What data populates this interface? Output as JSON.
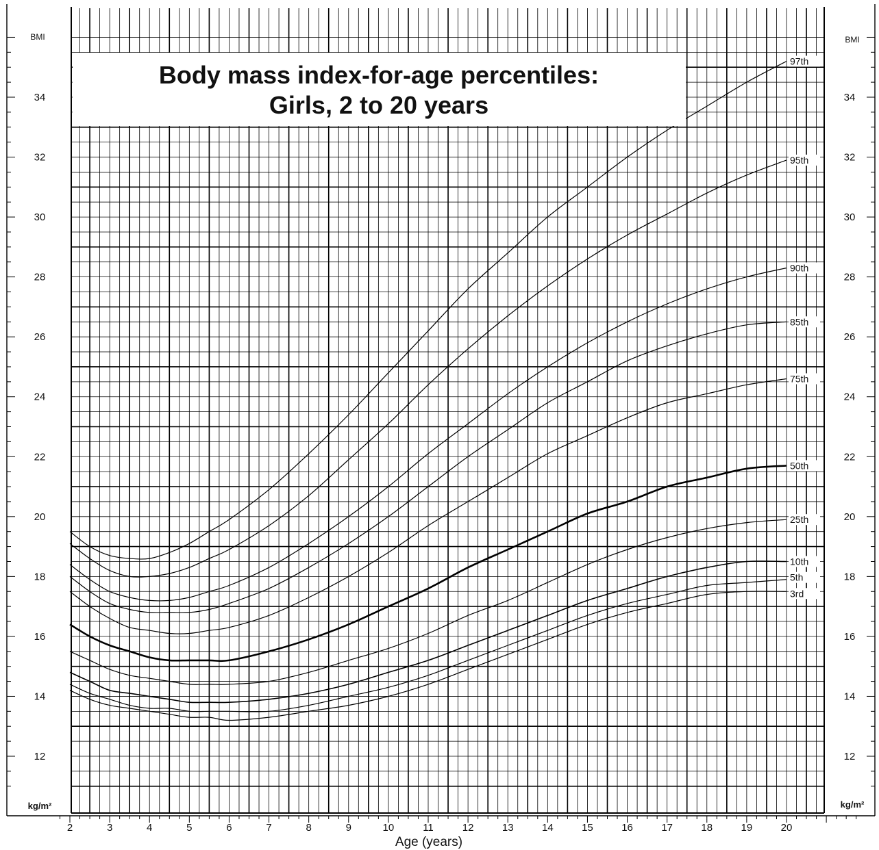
{
  "chart_data": {
    "type": "line",
    "title": "Body mass index-for-age percentiles:",
    "subtitle": "Girls, 2 to 20 years",
    "xlabel": "Age (years)",
    "ylabel_top": "BMI",
    "ylabel_bottom": "kg/m²",
    "xlim": [
      2,
      20
    ],
    "ylim": [
      11,
      36
    ],
    "grid": true,
    "x_ticks": [
      2,
      3,
      4,
      5,
      6,
      7,
      8,
      9,
      10,
      11,
      12,
      13,
      14,
      15,
      16,
      17,
      18,
      19,
      20
    ],
    "y_ticks": [
      12,
      14,
      16,
      18,
      20,
      22,
      24,
      26,
      28,
      30,
      32,
      34
    ],
    "series": [
      {
        "name": "97th",
        "width": 1.2,
        "points": [
          [
            2,
            19.5
          ],
          [
            2.5,
            19.0
          ],
          [
            3,
            18.7
          ],
          [
            3.5,
            18.6
          ],
          [
            4,
            18.6
          ],
          [
            4.5,
            18.8
          ],
          [
            5,
            19.1
          ],
          [
            5.5,
            19.5
          ],
          [
            6,
            19.9
          ],
          [
            7,
            20.9
          ],
          [
            8,
            22.1
          ],
          [
            9,
            23.4
          ],
          [
            10,
            24.8
          ],
          [
            11,
            26.2
          ],
          [
            12,
            27.6
          ],
          [
            13,
            28.8
          ],
          [
            14,
            30.0
          ],
          [
            15,
            31.0
          ],
          [
            16,
            32.0
          ],
          [
            17,
            32.9
          ],
          [
            18,
            33.7
          ],
          [
            19,
            34.5
          ],
          [
            20,
            35.2
          ]
        ]
      },
      {
        "name": "95th",
        "width": 1.2,
        "points": [
          [
            2,
            19.1
          ],
          [
            2.5,
            18.6
          ],
          [
            3,
            18.2
          ],
          [
            3.5,
            18.0
          ],
          [
            4,
            18.0
          ],
          [
            4.5,
            18.1
          ],
          [
            5,
            18.3
          ],
          [
            5.5,
            18.6
          ],
          [
            6,
            18.9
          ],
          [
            7,
            19.7
          ],
          [
            8,
            20.7
          ],
          [
            9,
            21.9
          ],
          [
            10,
            23.1
          ],
          [
            11,
            24.4
          ],
          [
            12,
            25.6
          ],
          [
            13,
            26.7
          ],
          [
            14,
            27.7
          ],
          [
            15,
            28.6
          ],
          [
            16,
            29.4
          ],
          [
            17,
            30.1
          ],
          [
            18,
            30.8
          ],
          [
            19,
            31.4
          ],
          [
            20,
            31.9
          ]
        ]
      },
      {
        "name": "90th",
        "width": 1.2,
        "points": [
          [
            2,
            18.4
          ],
          [
            2.5,
            17.9
          ],
          [
            3,
            17.5
          ],
          [
            3.5,
            17.3
          ],
          [
            4,
            17.2
          ],
          [
            4.5,
            17.2
          ],
          [
            5,
            17.3
          ],
          [
            5.5,
            17.5
          ],
          [
            6,
            17.7
          ],
          [
            7,
            18.3
          ],
          [
            8,
            19.1
          ],
          [
            9,
            20.0
          ],
          [
            10,
            21.0
          ],
          [
            11,
            22.1
          ],
          [
            12,
            23.1
          ],
          [
            13,
            24.1
          ],
          [
            14,
            25.0
          ],
          [
            15,
            25.8
          ],
          [
            16,
            26.5
          ],
          [
            17,
            27.1
          ],
          [
            18,
            27.6
          ],
          [
            19,
            28.0
          ],
          [
            20,
            28.3
          ]
        ]
      },
      {
        "name": "85th",
        "width": 1.2,
        "points": [
          [
            2,
            18.0
          ],
          [
            2.5,
            17.5
          ],
          [
            3,
            17.1
          ],
          [
            3.5,
            16.9
          ],
          [
            4,
            16.8
          ],
          [
            4.5,
            16.8
          ],
          [
            5,
            16.8
          ],
          [
            5.5,
            16.9
          ],
          [
            6,
            17.1
          ],
          [
            7,
            17.6
          ],
          [
            8,
            18.3
          ],
          [
            9,
            19.1
          ],
          [
            10,
            20.0
          ],
          [
            11,
            21.0
          ],
          [
            12,
            22.0
          ],
          [
            13,
            22.9
          ],
          [
            14,
            23.8
          ],
          [
            15,
            24.5
          ],
          [
            16,
            25.2
          ],
          [
            17,
            25.7
          ],
          [
            18,
            26.1
          ],
          [
            19,
            26.4
          ],
          [
            20,
            26.5
          ]
        ]
      },
      {
        "name": "75th",
        "width": 1.2,
        "points": [
          [
            2,
            17.5
          ],
          [
            2.5,
            17.0
          ],
          [
            3,
            16.6
          ],
          [
            3.5,
            16.3
          ],
          [
            4,
            16.2
          ],
          [
            4.5,
            16.1
          ],
          [
            5,
            16.1
          ],
          [
            5.5,
            16.2
          ],
          [
            6,
            16.3
          ],
          [
            7,
            16.7
          ],
          [
            8,
            17.3
          ],
          [
            9,
            18.0
          ],
          [
            10,
            18.8
          ],
          [
            11,
            19.7
          ],
          [
            12,
            20.5
          ],
          [
            13,
            21.3
          ],
          [
            14,
            22.1
          ],
          [
            15,
            22.7
          ],
          [
            16,
            23.3
          ],
          [
            17,
            23.8
          ],
          [
            18,
            24.1
          ],
          [
            19,
            24.4
          ],
          [
            20,
            24.6
          ]
        ]
      },
      {
        "name": "50th",
        "width": 2.6,
        "points": [
          [
            2,
            16.4
          ],
          [
            2.5,
            16.0
          ],
          [
            3,
            15.7
          ],
          [
            3.5,
            15.5
          ],
          [
            4,
            15.3
          ],
          [
            4.5,
            15.2
          ],
          [
            5,
            15.2
          ],
          [
            5.5,
            15.2
          ],
          [
            6,
            15.2
          ],
          [
            7,
            15.5
          ],
          [
            8,
            15.9
          ],
          [
            9,
            16.4
          ],
          [
            10,
            17.0
          ],
          [
            11,
            17.6
          ],
          [
            12,
            18.3
          ],
          [
            13,
            18.9
          ],
          [
            14,
            19.5
          ],
          [
            15,
            20.1
          ],
          [
            16,
            20.5
          ],
          [
            17,
            21.0
          ],
          [
            18,
            21.3
          ],
          [
            19,
            21.6
          ],
          [
            20,
            21.7
          ]
        ]
      },
      {
        "name": "25th",
        "width": 1.2,
        "points": [
          [
            2,
            15.5
          ],
          [
            2.5,
            15.2
          ],
          [
            3,
            14.9
          ],
          [
            3.5,
            14.7
          ],
          [
            4,
            14.6
          ],
          [
            4.5,
            14.5
          ],
          [
            5,
            14.4
          ],
          [
            5.5,
            14.4
          ],
          [
            6,
            14.4
          ],
          [
            7,
            14.5
          ],
          [
            8,
            14.8
          ],
          [
            9,
            15.2
          ],
          [
            10,
            15.6
          ],
          [
            11,
            16.1
          ],
          [
            12,
            16.7
          ],
          [
            13,
            17.2
          ],
          [
            14,
            17.8
          ],
          [
            15,
            18.4
          ],
          [
            16,
            18.9
          ],
          [
            17,
            19.3
          ],
          [
            18,
            19.6
          ],
          [
            19,
            19.8
          ],
          [
            20,
            19.9
          ]
        ]
      },
      {
        "name": "10th",
        "width": 1.6,
        "points": [
          [
            2,
            14.8
          ],
          [
            2.5,
            14.5
          ],
          [
            3,
            14.2
          ],
          [
            3.5,
            14.1
          ],
          [
            4,
            14.0
          ],
          [
            4.5,
            13.9
          ],
          [
            5,
            13.8
          ],
          [
            5.5,
            13.8
          ],
          [
            6,
            13.8
          ],
          [
            7,
            13.9
          ],
          [
            8,
            14.1
          ],
          [
            9,
            14.4
          ],
          [
            10,
            14.8
          ],
          [
            11,
            15.2
          ],
          [
            12,
            15.7
          ],
          [
            13,
            16.2
          ],
          [
            14,
            16.7
          ],
          [
            15,
            17.2
          ],
          [
            16,
            17.6
          ],
          [
            17,
            18.0
          ],
          [
            18,
            18.3
          ],
          [
            19,
            18.5
          ],
          [
            20,
            18.5
          ]
        ]
      },
      {
        "name": "5th",
        "width": 1.2,
        "points": [
          [
            2,
            14.4
          ],
          [
            2.5,
            14.1
          ],
          [
            3,
            13.9
          ],
          [
            3.5,
            13.7
          ],
          [
            4,
            13.6
          ],
          [
            4.5,
            13.6
          ],
          [
            5,
            13.5
          ],
          [
            5.5,
            13.5
          ],
          [
            6,
            13.5
          ],
          [
            7,
            13.5
          ],
          [
            8,
            13.7
          ],
          [
            9,
            14.0
          ],
          [
            10,
            14.3
          ],
          [
            11,
            14.7
          ],
          [
            12,
            15.2
          ],
          [
            13,
            15.7
          ],
          [
            14,
            16.2
          ],
          [
            15,
            16.7
          ],
          [
            16,
            17.1
          ],
          [
            17,
            17.4
          ],
          [
            18,
            17.7
          ],
          [
            19,
            17.8
          ],
          [
            20,
            17.9
          ]
        ]
      },
      {
        "name": "3rd",
        "width": 1.2,
        "points": [
          [
            2,
            14.2
          ],
          [
            2.5,
            13.9
          ],
          [
            3,
            13.7
          ],
          [
            3.5,
            13.6
          ],
          [
            4,
            13.5
          ],
          [
            4.5,
            13.4
          ],
          [
            5,
            13.3
          ],
          [
            5.5,
            13.3
          ],
          [
            6,
            13.2
          ],
          [
            7,
            13.3
          ],
          [
            8,
            13.5
          ],
          [
            9,
            13.7
          ],
          [
            10,
            14.0
          ],
          [
            11,
            14.4
          ],
          [
            12,
            14.9
          ],
          [
            13,
            15.4
          ],
          [
            14,
            15.9
          ],
          [
            15,
            16.4
          ],
          [
            16,
            16.8
          ],
          [
            17,
            17.1
          ],
          [
            18,
            17.4
          ],
          [
            19,
            17.5
          ],
          [
            20,
            17.5
          ]
        ]
      }
    ]
  }
}
